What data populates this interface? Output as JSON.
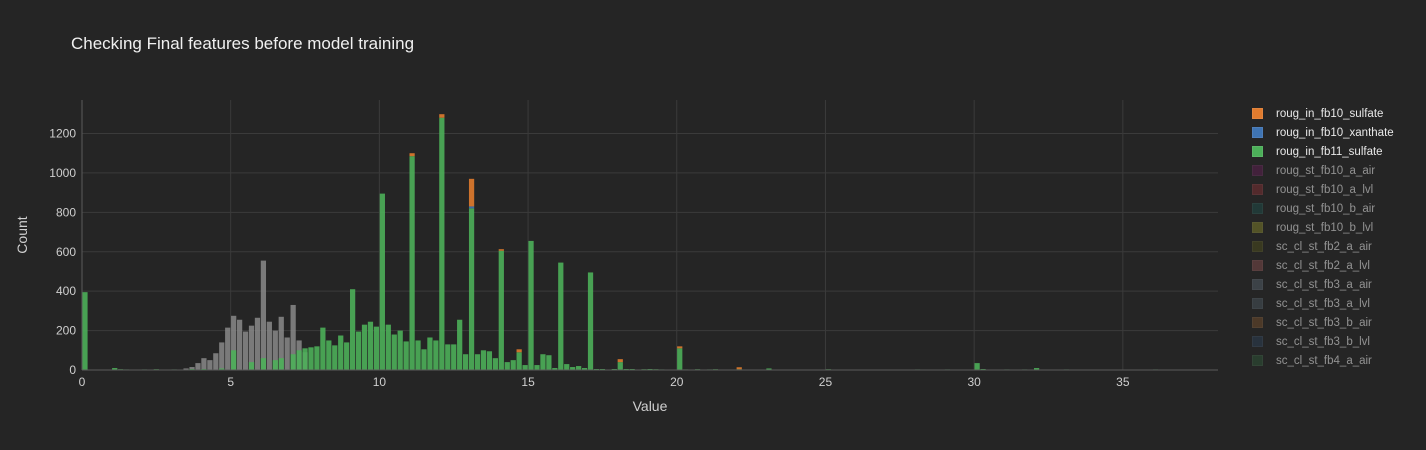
{
  "chart_data": {
    "type": "bar",
    "title": "Checking Final features before model training",
    "xlabel": "Value",
    "ylabel": "Count",
    "xlim": [
      0,
      38.2
    ],
    "ylim": [
      0,
      1370
    ],
    "x_ticks": [
      "0",
      "5",
      "10",
      "15",
      "20",
      "25",
      "30",
      "35"
    ],
    "x_tick_values": [
      0,
      5,
      10,
      15,
      20,
      25,
      30,
      35
    ],
    "y_ticks": [
      "0",
      "200",
      "400",
      "600",
      "800",
      "1000",
      "1200"
    ],
    "y_tick_values": [
      0,
      200,
      400,
      600,
      800,
      1000,
      1200
    ],
    "grid": true,
    "legend_position": "right",
    "bin_width": 0.2,
    "series": [
      {
        "name": "roug_in_fb10_sulfate",
        "color": "#e07b2e",
        "visible": true,
        "points": [
          [
            11,
            15
          ],
          [
            12,
            18
          ],
          [
            13,
            140
          ],
          [
            14,
            8
          ],
          [
            14.6,
            15
          ],
          [
            18,
            15
          ],
          [
            20,
            10
          ],
          [
            22,
            10
          ]
        ]
      },
      {
        "name": "roug_in_fb10_xanthate",
        "color": "#3f74b3",
        "visible": true,
        "points": [
          [
            13,
            10
          ]
        ]
      },
      {
        "name": "roug_in_fb11_sulfate",
        "color": "#4caf59",
        "visible": true,
        "points": [
          [
            0,
            395
          ],
          [
            0.6,
            2
          ],
          [
            1,
            10
          ],
          [
            1.2,
            4
          ],
          [
            1.4,
            3
          ],
          [
            2,
            3
          ],
          [
            2.4,
            4
          ],
          [
            3,
            3
          ],
          [
            3.6,
            5
          ],
          [
            4,
            5
          ],
          [
            4.6,
            8
          ],
          [
            5,
            100
          ],
          [
            5.6,
            40
          ],
          [
            6,
            60
          ],
          [
            6.4,
            50
          ],
          [
            6.6,
            60
          ],
          [
            7,
            80
          ],
          [
            7.2,
            100
          ],
          [
            7.4,
            110
          ],
          [
            7.6,
            115
          ],
          [
            7.8,
            120
          ],
          [
            8,
            215
          ],
          [
            8.2,
            150
          ],
          [
            8.4,
            125
          ],
          [
            8.6,
            175
          ],
          [
            8.8,
            140
          ],
          [
            9,
            410
          ],
          [
            9.2,
            195
          ],
          [
            9.4,
            230
          ],
          [
            9.6,
            245
          ],
          [
            9.8,
            220
          ],
          [
            10,
            895
          ],
          [
            10.2,
            230
          ],
          [
            10.4,
            180
          ],
          [
            10.6,
            200
          ],
          [
            10.8,
            145
          ],
          [
            11,
            1085
          ],
          [
            11.2,
            150
          ],
          [
            11.4,
            105
          ],
          [
            11.6,
            165
          ],
          [
            11.8,
            150
          ],
          [
            12,
            1280
          ],
          [
            12.2,
            130
          ],
          [
            12.4,
            130
          ],
          [
            12.6,
            255
          ],
          [
            12.8,
            80
          ],
          [
            13,
            820
          ],
          [
            13.2,
            80
          ],
          [
            13.4,
            100
          ],
          [
            13.6,
            95
          ],
          [
            13.8,
            60
          ],
          [
            14,
            605
          ],
          [
            14.2,
            40
          ],
          [
            14.4,
            50
          ],
          [
            14.6,
            90
          ],
          [
            14.8,
            25
          ],
          [
            15,
            655
          ],
          [
            15.2,
            25
          ],
          [
            15.4,
            80
          ],
          [
            15.6,
            75
          ],
          [
            15.8,
            10
          ],
          [
            16,
            545
          ],
          [
            16.2,
            30
          ],
          [
            16.4,
            15
          ],
          [
            16.6,
            20
          ],
          [
            16.8,
            10
          ],
          [
            17,
            495
          ],
          [
            17.2,
            5
          ],
          [
            17.4,
            5
          ],
          [
            17.8,
            5
          ],
          [
            18,
            40
          ],
          [
            18.2,
            5
          ],
          [
            18.4,
            5
          ],
          [
            18.8,
            4
          ],
          [
            19,
            5
          ],
          [
            19.2,
            4
          ],
          [
            19.4,
            3
          ],
          [
            20,
            110
          ],
          [
            20.2,
            3
          ],
          [
            20.4,
            2
          ],
          [
            20.6,
            4
          ],
          [
            21,
            3
          ],
          [
            21.2,
            4
          ],
          [
            22,
            4
          ],
          [
            23,
            8
          ],
          [
            25,
            4
          ],
          [
            28,
            3
          ],
          [
            29,
            3
          ],
          [
            30,
            35
          ],
          [
            30.2,
            5
          ],
          [
            31,
            3
          ],
          [
            31.6,
            3
          ],
          [
            32,
            10
          ],
          [
            33,
            3
          ],
          [
            36,
            3
          ],
          [
            37,
            2
          ]
        ]
      },
      {
        "name": "roug_st_fb10_a_air",
        "color": "#5a1f4e",
        "visible": false
      },
      {
        "name": "roug_st_fb10_a_lvl",
        "color": "#7a2f33",
        "visible": false
      },
      {
        "name": "roug_st_fb10_b_air",
        "color": "#1e4a46",
        "visible": false
      },
      {
        "name": "roug_st_fb10_b_lvl",
        "color": "#7a7a2a",
        "visible": false
      },
      {
        "name": "sc_cl_st_fb2_a_air",
        "color": "#4a4a1c",
        "visible": false
      },
      {
        "name": "sc_cl_st_fb2_a_lvl",
        "color": "#7a4848",
        "visible": false
      },
      {
        "name": "sc_cl_st_fb3_a_air",
        "color": "#4f5a63",
        "visible": false
      },
      {
        "name": "sc_cl_st_fb3_a_lvl",
        "color": "#465158",
        "visible": false
      },
      {
        "name": "sc_cl_st_fb3_b_air",
        "color": "#6d4a2c",
        "visible": false
      },
      {
        "name": "sc_cl_st_fb3_b_lvl",
        "color": "#2c3d52",
        "visible": false
      },
      {
        "name": "sc_cl_st_fb4_a_air",
        "color": "#2e5236",
        "visible": false
      }
    ],
    "background_series": {
      "color": "#8a8a8a",
      "points": [
        [
          3.4,
          8
        ],
        [
          3.6,
          15
        ],
        [
          3.8,
          35
        ],
        [
          4,
          60
        ],
        [
          4.2,
          50
        ],
        [
          4.4,
          85
        ],
        [
          4.6,
          140
        ],
        [
          4.8,
          215
        ],
        [
          5,
          275
        ],
        [
          5.2,
          255
        ],
        [
          5.4,
          195
        ],
        [
          5.6,
          225
        ],
        [
          5.8,
          265
        ],
        [
          6,
          555
        ],
        [
          6.2,
          245
        ],
        [
          6.4,
          200
        ],
        [
          6.6,
          270
        ],
        [
          6.8,
          165
        ],
        [
          7,
          330
        ],
        [
          7.2,
          150
        ],
        [
          7.4,
          90
        ]
      ]
    }
  }
}
